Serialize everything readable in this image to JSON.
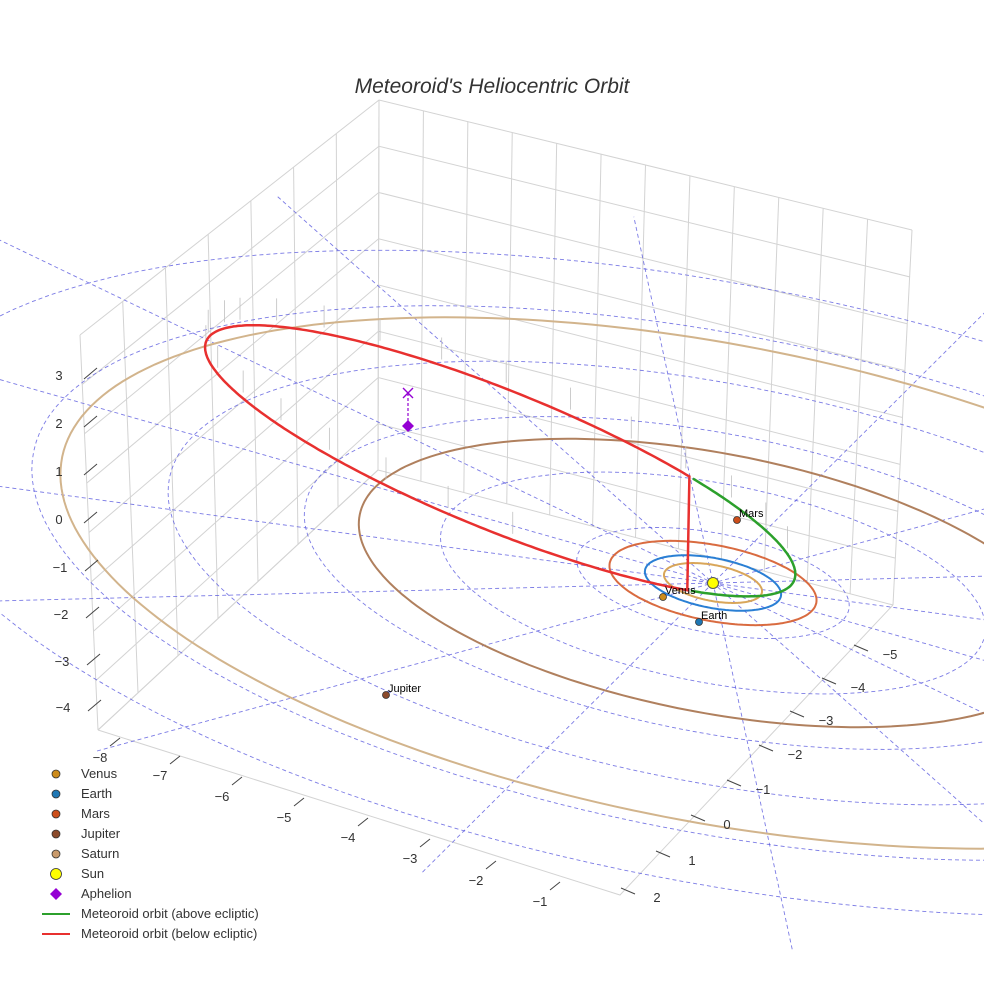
{
  "chart_data": {
    "type": "scatter3d",
    "title": "Meteoroid's Heliocentric Orbit",
    "x_ticks": [
      "−8",
      "−7",
      "−6",
      "−5",
      "−4",
      "−3",
      "−2",
      "−1"
    ],
    "y_ticks": [
      "−5",
      "−4",
      "−3",
      "−2",
      "−1",
      "0",
      "1",
      "2"
    ],
    "z_ticks": [
      "3",
      "2",
      "1",
      "0",
      "−1",
      "−2",
      "−3",
      "−4"
    ],
    "sun": {
      "name": "Sun",
      "color": "#ffff00"
    },
    "planets": [
      {
        "name": "Venus",
        "color": "#cd8b1a",
        "orbit_color": "#d9a65a",
        "orbit_radius_au": 0.72
      },
      {
        "name": "Earth",
        "color": "#1f77b4",
        "orbit_color": "#2a7fd4",
        "orbit_radius_au": 1.0
      },
      {
        "name": "Mars",
        "color": "#cc4e1a",
        "orbit_color": "#d96b40",
        "orbit_radius_au": 1.52
      },
      {
        "name": "Jupiter",
        "color": "#8b4a2b",
        "orbit_color": "#b0805e",
        "orbit_radius_au": 5.2
      },
      {
        "name": "Saturn",
        "color": "#c99a6b",
        "orbit_color": "#d2b48c",
        "orbit_radius_au": 9.58
      }
    ],
    "meteoroid_orbit": {
      "above_ecliptic_color": "#2ca02c",
      "below_ecliptic_color": "#e8302f"
    },
    "aphelion": {
      "name": "Aphelion",
      "color": "#9400d3",
      "marker": "diamond",
      "projection_marker": "x"
    },
    "ecliptic_grid_color": "#5a5adf",
    "legend": [
      {
        "label": "Venus",
        "kind": "dot",
        "color": "#cd8b1a"
      },
      {
        "label": "Earth",
        "kind": "dot",
        "color": "#1f77b4"
      },
      {
        "label": "Mars",
        "kind": "dot",
        "color": "#cc4e1a"
      },
      {
        "label": "Jupiter",
        "kind": "dot",
        "color": "#8b4a2b"
      },
      {
        "label": "Saturn",
        "kind": "dot",
        "color": "#c99a6b"
      },
      {
        "label": "Sun",
        "kind": "bigdot",
        "color": "#ffff00"
      },
      {
        "label": "Aphelion",
        "kind": "diamond",
        "color": "#9400d3"
      },
      {
        "label": "Meteoroid orbit (above ecliptic)",
        "kind": "line",
        "color": "#2ca02c"
      },
      {
        "label": "Meteoroid orbit (below ecliptic)",
        "kind": "line",
        "color": "#e8302f"
      }
    ]
  }
}
